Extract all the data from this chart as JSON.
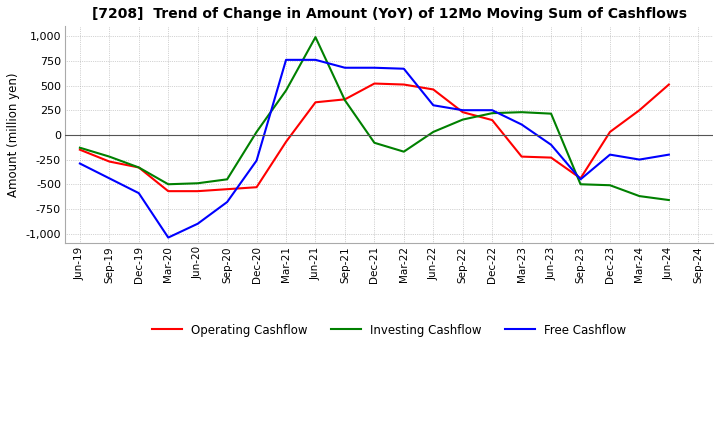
{
  "title": "[7208]  Trend of Change in Amount (YoY) of 12Mo Moving Sum of Cashflows",
  "ylabel": "Amount (million yen)",
  "ylim": [
    -1100,
    1100
  ],
  "yticks": [
    -1000,
    -750,
    -500,
    -250,
    0,
    250,
    500,
    750,
    1000
  ],
  "x_labels": [
    "Jun-19",
    "Sep-19",
    "Dec-19",
    "Mar-20",
    "Jun-20",
    "Sep-20",
    "Dec-20",
    "Mar-21",
    "Jun-21",
    "Sep-21",
    "Dec-21",
    "Mar-22",
    "Jun-22",
    "Sep-22",
    "Dec-22",
    "Mar-23",
    "Jun-23",
    "Sep-23",
    "Dec-23",
    "Mar-24",
    "Jun-24",
    "Sep-24"
  ],
  "operating": [
    -150,
    -270,
    -330,
    -570,
    -570,
    -550,
    -530,
    -70,
    330,
    360,
    520,
    510,
    460,
    230,
    150,
    -220,
    -230,
    -440,
    30,
    250,
    510,
    null
  ],
  "investing": [
    -130,
    -220,
    -330,
    -500,
    -490,
    -450,
    30,
    450,
    990,
    350,
    -80,
    -170,
    30,
    155,
    220,
    230,
    215,
    -500,
    -510,
    -620,
    -660,
    null
  ],
  "free": [
    -290,
    -440,
    -590,
    -1040,
    -900,
    -680,
    -260,
    760,
    760,
    680,
    680,
    670,
    300,
    250,
    250,
    105,
    -100,
    -450,
    -200,
    -250,
    -200,
    null
  ],
  "operating_color": "#ff0000",
  "investing_color": "#008000",
  "free_color": "#0000ff",
  "bg_color": "#ffffff",
  "plot_bg_color": "#ffffff",
  "grid_color": "#aaaaaa"
}
